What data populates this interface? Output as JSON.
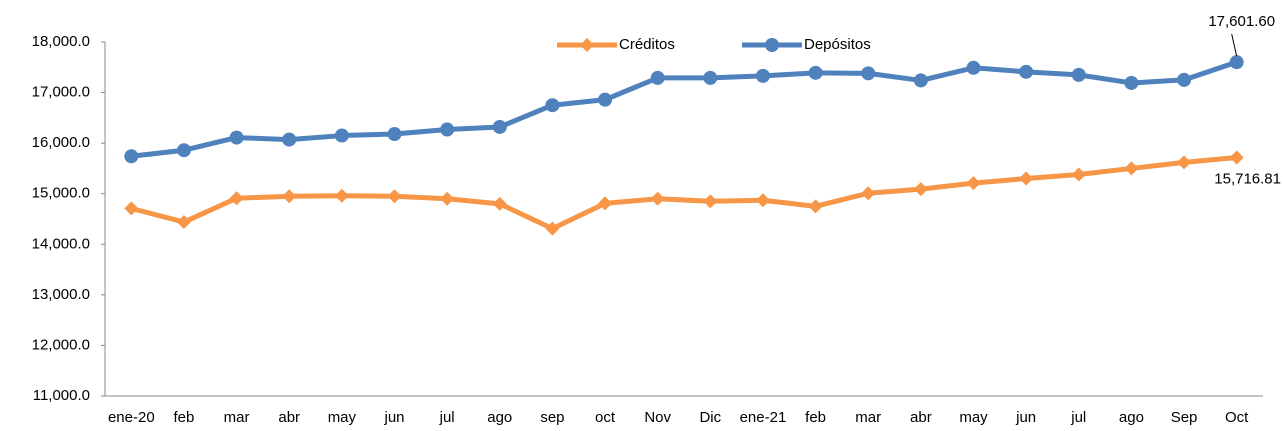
{
  "chart_data": {
    "type": "line",
    "categories": [
      "ene-20",
      "feb",
      "mar",
      "abr",
      "may",
      "jun",
      "jul",
      "ago",
      "sep",
      "oct",
      "Nov",
      "Dic",
      "ene-21",
      "feb",
      "mar",
      "abr",
      "may",
      "jun",
      "jul",
      "ago",
      "Sep",
      "Oct"
    ],
    "series": [
      {
        "name": "Créditos",
        "color": "#F79646",
        "marker": "diamond",
        "values": [
          14710,
          14440,
          14910,
          14950,
          14960,
          14950,
          14900,
          14800,
          14310,
          14810,
          14900,
          14850,
          14870,
          14750,
          15010,
          15090,
          15210,
          15300,
          15380,
          15500,
          15620,
          15716.81
        ],
        "value_labels": [
          null,
          null,
          null,
          null,
          null,
          null,
          null,
          null,
          null,
          null,
          null,
          null,
          null,
          null,
          null,
          null,
          null,
          null,
          null,
          null,
          null,
          "15,716.81"
        ]
      },
      {
        "name": "Depósitos",
        "color": "#4F81BD",
        "marker": "circle",
        "values": [
          15740,
          15860,
          16110,
          16070,
          16150,
          16180,
          16270,
          16320,
          16750,
          16860,
          17290,
          17290,
          17330,
          17390,
          17380,
          17240,
          17490,
          17410,
          17350,
          17190,
          17250,
          17601.6
        ],
        "value_labels": [
          null,
          null,
          null,
          null,
          null,
          null,
          null,
          null,
          null,
          null,
          null,
          null,
          null,
          null,
          null,
          null,
          null,
          null,
          null,
          null,
          null,
          "17,601.60"
        ]
      }
    ],
    "ylim": [
      11000,
      18000
    ],
    "yticks": [
      {
        "value": 11000,
        "label": "11,000.0"
      },
      {
        "value": 12000,
        "label": "12,000.0"
      },
      {
        "value": 13000,
        "label": "13,000.0"
      },
      {
        "value": 14000,
        "label": "14,000.0"
      },
      {
        "value": 15000,
        "label": "15,000.0"
      },
      {
        "value": 16000,
        "label": "16,000.0"
      },
      {
        "value": 17000,
        "label": "17,000.0"
      },
      {
        "value": 18000,
        "label": "18,000.0"
      }
    ],
    "grid": false,
    "legend": "top"
  }
}
